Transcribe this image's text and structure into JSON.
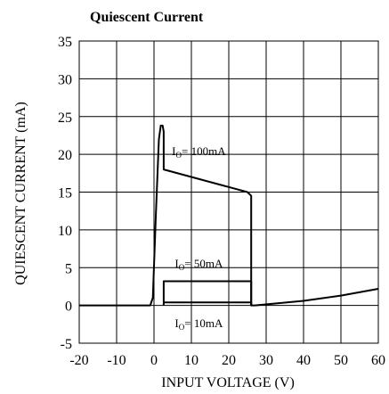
{
  "chart_data": {
    "type": "line",
    "title": "Quiescent Current",
    "xlabel": "INPUT VOLTAGE (V)",
    "ylabel": "QUIESCENT CURRENT (mA)",
    "xlim": [
      -20,
      60
    ],
    "ylim": [
      -5,
      35
    ],
    "xticks": [
      "-20",
      "-10",
      "0",
      "10",
      "20",
      "30",
      "40",
      "50",
      "60"
    ],
    "yticks": [
      "-5",
      "0",
      "5",
      "10",
      "15",
      "20",
      "25",
      "30",
      "35"
    ],
    "grid": true,
    "series": [
      {
        "name": "IO = 100mA",
        "points": [
          [
            -20,
            0
          ],
          [
            -1,
            0
          ],
          [
            -0.3,
            1
          ],
          [
            0.5,
            12
          ],
          [
            1.3,
            22
          ],
          [
            1.8,
            23.8
          ],
          [
            2.3,
            23.8
          ],
          [
            2.6,
            23
          ],
          [
            2.6,
            18
          ],
          [
            25,
            15
          ],
          [
            26,
            14.5
          ],
          [
            26,
            0
          ]
        ]
      },
      {
        "name": "IO = 50mA",
        "points": [
          [
            2.6,
            0
          ],
          [
            2.6,
            3.2
          ],
          [
            26,
            3.2
          ],
          [
            26,
            0
          ]
        ]
      },
      {
        "name": "IO = 10mA",
        "points": [
          [
            2.6,
            0.4
          ],
          [
            26,
            0.4
          ],
          [
            26,
            0
          ],
          [
            27,
            0
          ],
          [
            40,
            0.6
          ],
          [
            50,
            1.3
          ],
          [
            60,
            2.2
          ]
        ]
      }
    ],
    "annotations": [
      {
        "text": "I",
        "sub": "O",
        "rest": "= 100mA",
        "x": 12,
        "y": 20.5
      },
      {
        "text": "I",
        "sub": "O",
        "rest": "= 50mA",
        "x": 12,
        "y": 5.6
      },
      {
        "text": "I",
        "sub": "O",
        "rest": "= 10mA",
        "x": 12,
        "y": -2.3
      }
    ]
  }
}
